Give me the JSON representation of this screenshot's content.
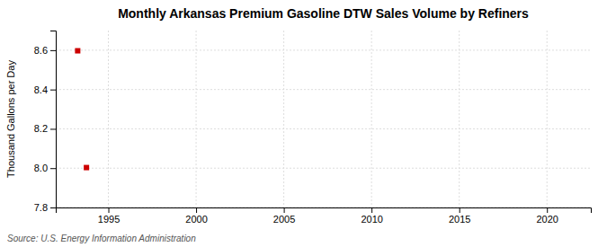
{
  "chart_data": {
    "type": "scatter",
    "title": "Monthly Arkansas Premium Gasoline DTW Sales Volume by Refiners",
    "ylabel": "Thousand Gallons per Day",
    "annotations": [
      "Source: U.S. Energy Information Administration"
    ],
    "x": [
      1993.25,
      1993.75
    ],
    "values": [
      8.597,
      8.003
    ],
    "color": "#cc0000",
    "marker": "square",
    "xlim": [
      1992.0,
      2022.5
    ],
    "xticks": [
      1995,
      2000,
      2005,
      2010,
      2015,
      2020
    ],
    "ylim": [
      7.8,
      8.7
    ],
    "yticks": [
      7.8,
      {
        "value": 8.0,
        "label": "8.0"
      },
      8.2,
      8.4,
      8.6
    ],
    "grid": true
  }
}
